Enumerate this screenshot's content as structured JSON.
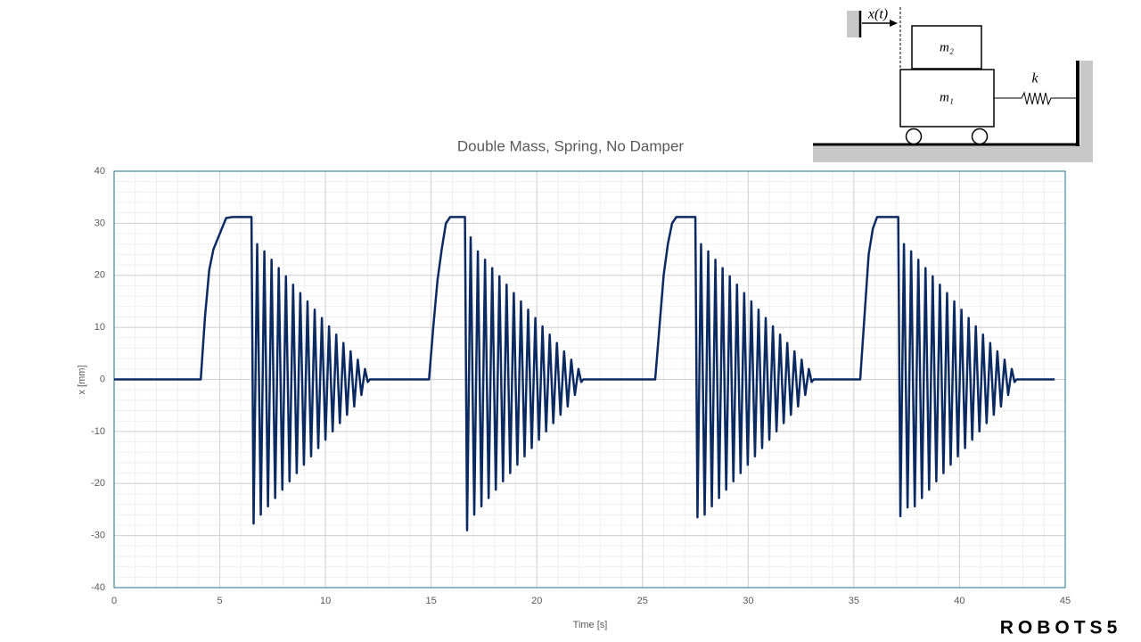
{
  "chart_data": {
    "type": "line",
    "title": "Double Mass, Spring, No Damper",
    "x_label": "Time [s]",
    "y_label": "x [mm]",
    "color": "#0c2a62",
    "grid": true,
    "minor_grid": true,
    "xlim": [
      0,
      45
    ],
    "xticks": [
      0,
      5,
      10,
      15,
      20,
      25,
      30,
      35,
      40,
      45
    ],
    "ylim": [
      -40,
      40
    ],
    "yticks": [
      -40,
      -30,
      -20,
      -10,
      0,
      10,
      20,
      30,
      40
    ],
    "x": [
      0,
      4.1,
      4.3,
      4.5,
      4.7,
      5,
      5.3,
      5.6,
      6.5,
      6.6,
      6.77,
      6.94,
      7.11,
      7.28,
      7.45,
      7.62,
      7.79,
      7.96,
      8.13,
      8.3,
      8.47,
      8.64,
      8.81,
      8.98,
      9.15,
      9.32,
      9.49,
      9.66,
      9.83,
      10,
      10.17,
      10.34,
      10.51,
      10.68,
      10.85,
      11.02,
      11.19,
      11.36,
      11.53,
      11.7,
      11.87,
      12,
      12.1,
      14.9,
      15.1,
      15.3,
      15.5,
      15.7,
      15.9,
      16.6,
      16.7,
      16.87,
      17.04,
      17.21,
      17.38,
      17.55,
      17.72,
      17.89,
      18.06,
      18.23,
      18.4,
      18.57,
      18.74,
      18.91,
      19.08,
      19.25,
      19.42,
      19.59,
      19.76,
      19.93,
      20.1,
      20.27,
      20.44,
      20.61,
      20.78,
      20.95,
      21.12,
      21.29,
      21.46,
      21.63,
      21.8,
      21.97,
      22.1,
      22.2,
      25.6,
      25.8,
      26,
      26.2,
      26.4,
      26.6,
      27.5,
      27.6,
      27.77,
      27.94,
      28.11,
      28.28,
      28.45,
      28.62,
      28.79,
      28.96,
      29.13,
      29.3,
      29.47,
      29.64,
      29.81,
      29.98,
      30.15,
      30.32,
      30.49,
      30.66,
      30.83,
      31,
      31.17,
      31.34,
      31.51,
      31.68,
      31.85,
      32.02,
      32.19,
      32.36,
      32.53,
      32.7,
      32.87,
      33,
      33.1,
      35.3,
      35.5,
      35.7,
      35.9,
      36.1,
      37.1,
      37.2,
      37.37,
      37.54,
      37.71,
      37.88,
      38.05,
      38.22,
      38.39,
      38.56,
      38.73,
      38.9,
      39.07,
      39.24,
      39.41,
      39.58,
      39.75,
      39.92,
      40.09,
      40.26,
      40.43,
      40.6,
      40.77,
      40.94,
      41.11,
      41.28,
      41.45,
      41.62,
      41.79,
      41.96,
      42.13,
      42.3,
      42.47,
      42.6,
      42.7,
      44.5
    ],
    "values": [
      0,
      0,
      12,
      21,
      25,
      28,
      31,
      31.2,
      31.2,
      -27.7,
      26,
      -26,
      24.6,
      -24.4,
      23,
      -22.8,
      21.4,
      -21.2,
      19.8,
      -19.6,
      18.2,
      -18,
      16.6,
      -16.4,
      15,
      -14.8,
      13.4,
      -13.2,
      11.8,
      -11.6,
      10.2,
      -10,
      8.6,
      -8.4,
      7,
      -6.8,
      5.4,
      -5.2,
      3.8,
      -3,
      2,
      -0.5,
      0,
      0,
      10,
      19,
      25,
      30,
      31.2,
      31.2,
      -29,
      27.3,
      -26,
      24.6,
      -24.4,
      23,
      -22.8,
      21.4,
      -21.2,
      19.8,
      -19.6,
      18.2,
      -18,
      16.6,
      -16.4,
      15,
      -14.8,
      13.4,
      -13.2,
      11.8,
      -11.6,
      10.2,
      -10,
      8.6,
      -8.4,
      7,
      -6.8,
      5.4,
      -5.2,
      3.8,
      -3,
      2,
      -0.5,
      0,
      0,
      10,
      20,
      26,
      30,
      31.2,
      31.2,
      -26.5,
      26,
      -26,
      24.6,
      -24.4,
      23,
      -22.8,
      21.4,
      -21.2,
      19.8,
      -19.6,
      18.2,
      -18,
      16.6,
      -16.4,
      15,
      -14.8,
      13.4,
      -13.2,
      11.8,
      -11.6,
      10.2,
      -10,
      8.6,
      -8.4,
      7,
      -6.8,
      5.4,
      -5.2,
      3.8,
      -3,
      2,
      -0.5,
      0,
      0,
      12,
      24,
      29,
      31.2,
      31.2,
      -26.3,
      26,
      -24.6,
      24.6,
      -24.4,
      23,
      -22.8,
      21.4,
      -21.2,
      19.8,
      -19.6,
      18.2,
      -18,
      16.6,
      -16.4,
      15,
      -14.8,
      13.4,
      -13.2,
      11.8,
      -11.6,
      10.2,
      -10,
      8.6,
      -8.4,
      7,
      -6.8,
      5.4,
      -5.2,
      3.8,
      -3,
      2,
      -0.5,
      0,
      0
    ]
  },
  "diagram": {
    "displacement": "x(t)",
    "mass_top": "m₂",
    "mass_bottom": "m₁",
    "spring": "k"
  },
  "brand": "ROBOTS5"
}
